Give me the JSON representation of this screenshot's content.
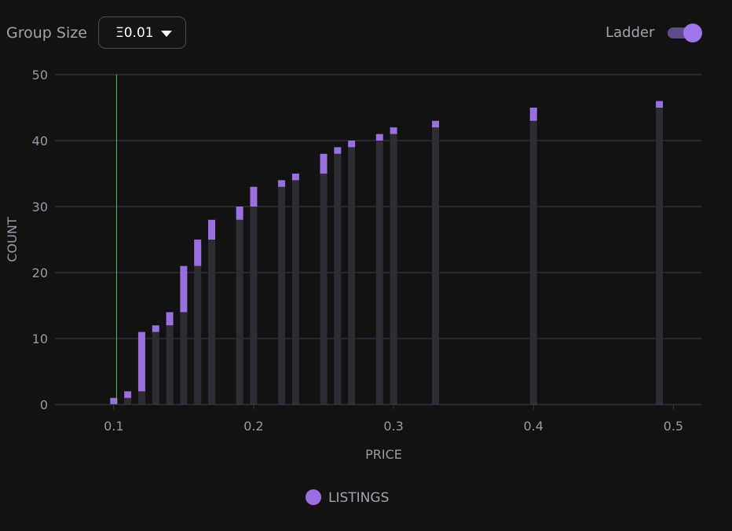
{
  "toolbar": {
    "group_size_label": "Group Size",
    "group_size_value": "Ξ0.01",
    "ladder_label": "Ladder",
    "ladder_on": true,
    "caret_icon": "caret-down-icon"
  },
  "colors": {
    "background": "#121212",
    "listing": "#9a6fe0",
    "ladder_base": "#2e2d33",
    "grid": "#3e3c4c",
    "reference_line": "#63c167",
    "tick_text": "#9b99a8"
  },
  "chart_data": {
    "type": "bar",
    "stacked": true,
    "xlabel": "PRICE",
    "ylabel": "COUNT",
    "xlim": [
      0.058,
      0.52
    ],
    "ylim": [
      0,
      50
    ],
    "xticks": [
      0.1,
      0.2,
      0.3,
      0.4,
      0.5
    ],
    "xtick_labels": [
      "0.1",
      "0.2",
      "0.3",
      "0.4",
      "0.5"
    ],
    "yticks": [
      0,
      10,
      20,
      30,
      40,
      50
    ],
    "ytick_labels": [
      "0",
      "10",
      "20",
      "30",
      "40",
      "50"
    ],
    "grid": true,
    "reference_line_x": 0.102,
    "x": [
      0.1,
      0.11,
      0.12,
      0.13,
      0.14,
      0.15,
      0.16,
      0.17,
      0.19,
      0.2,
      0.22,
      0.23,
      0.25,
      0.26,
      0.27,
      0.29,
      0.3,
      0.33,
      0.4,
      0.49
    ],
    "series": [
      {
        "role": "cumulative_base",
        "values": [
          0,
          1,
          2,
          11,
          12,
          14,
          21,
          25,
          28,
          30,
          33,
          34,
          35,
          38,
          39,
          40,
          41,
          42,
          43,
          45
        ]
      },
      {
        "name": "LISTINGS",
        "values": [
          1,
          1,
          9,
          1,
          2,
          7,
          4,
          3,
          2,
          3,
          1,
          1,
          3,
          1,
          1,
          1,
          1,
          1,
          2,
          1
        ]
      }
    ],
    "legend": {
      "position": "bottom-center",
      "entries": [
        "LISTINGS"
      ]
    }
  }
}
